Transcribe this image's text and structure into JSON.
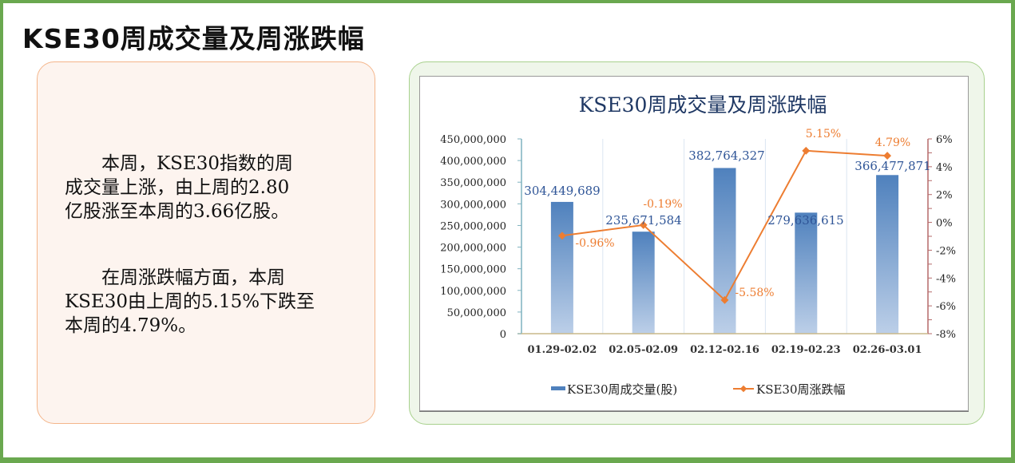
{
  "page": {
    "title": "KSE30周成交量及周涨跌幅",
    "frame_color": "#6aa84f"
  },
  "summary": {
    "paragraph1": "本周，KSE30指数的周成交量上涨，由上周的2.80亿股涨至本周的3.66亿股。",
    "paragraph1_lines": [
      "本周，KSE30指数的周",
      "成交量上涨，由上周的2.80",
      "亿股涨至本周的3.66亿股。"
    ],
    "paragraph2": "在周涨跌幅方面，本周KSE30由上周的5.15%下跌至本周的4.79%。",
    "paragraph2_lines": [
      "在周涨跌幅方面，本周",
      "KSE30由上周的5.15%下跌至",
      "本周的4.79%。"
    ]
  },
  "chart_data": {
    "type": "bar+line",
    "title": "KSE30周成交量及周涨跌幅",
    "categories": [
      "01.29-02.02",
      "02.05-02.09",
      "02.12-02.16",
      "02.19-02.23",
      "02.26-03.01"
    ],
    "series": [
      {
        "name": "KSE30周成交量(股)",
        "type": "bar",
        "axis": "left",
        "color": "#4f81bd",
        "values": [
          304449689,
          235671584,
          382764327,
          279636615,
          366477871
        ],
        "labels": [
          "304,449,689",
          "235,671,584",
          "382,764,327",
          "279,636,615",
          "366,477,871"
        ]
      },
      {
        "name": "KSE30周涨跌幅",
        "type": "line",
        "axis": "right",
        "color": "#ed7d31",
        "values": [
          -0.96,
          -0.19,
          -5.58,
          5.15,
          4.79
        ],
        "labels": [
          "-0.96%",
          "-0.19%",
          "-5.58%",
          "5.15%",
          "4.79%"
        ]
      }
    ],
    "y_left": {
      "min": 0,
      "max": 450000000,
      "step": 50000000,
      "ticks": [
        "450,000,000",
        "400,000,000",
        "350,000,000",
        "300,000,000",
        "250,000,000",
        "200,000,000",
        "150,000,000",
        "100,000,000",
        "50,000,000",
        "0"
      ]
    },
    "y_right": {
      "min": -8,
      "max": 6,
      "step": 2,
      "ticks": [
        "6%",
        "4%",
        "2%",
        "0%",
        "-2%",
        "-4%",
        "-6%",
        "-8%"
      ]
    },
    "xlabel": "",
    "ylabel": "",
    "legend_position": "bottom",
    "grid": "vertical category separators"
  }
}
